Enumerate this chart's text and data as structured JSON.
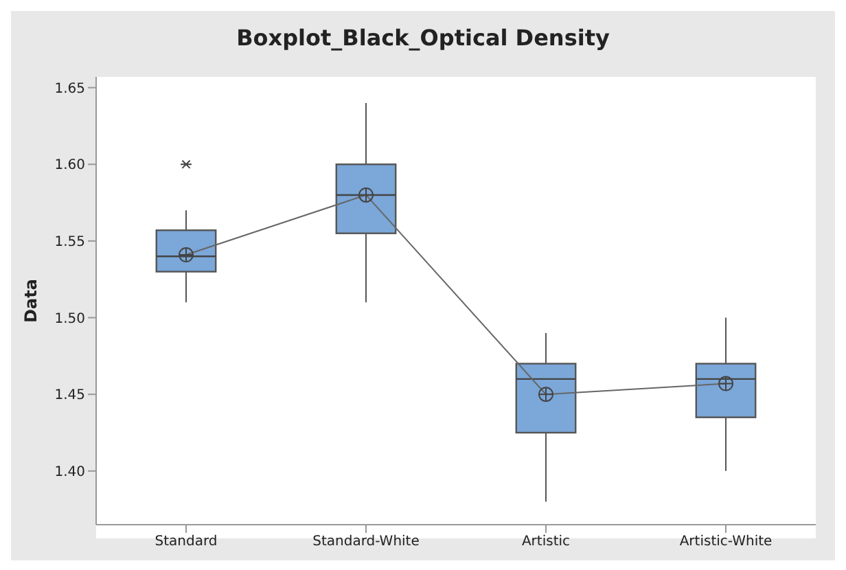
{
  "chart_data": {
    "type": "box",
    "title": "Boxplot_Black_Optical Density",
    "ylabel": "Data",
    "categories": [
      "Standard",
      "Standard-White",
      "Artistic",
      "Artistic-White"
    ],
    "color": "#7ba7d9",
    "ylim": [
      1.365,
      1.657
    ],
    "yticks": [
      {
        "value": 1.4,
        "label": "1.40"
      },
      {
        "value": 1.45,
        "label": "1.45"
      },
      {
        "value": 1.5,
        "label": "1.50"
      },
      {
        "value": 1.55,
        "label": "1.55"
      },
      {
        "value": 1.6,
        "label": "1.60"
      },
      {
        "value": 1.65,
        "label": "1.65"
      }
    ],
    "grid": false,
    "legend": false,
    "boxes": [
      {
        "low": 1.51,
        "q1": 1.53,
        "median": 1.54,
        "q3": 1.557,
        "high": 1.57,
        "outliers": [
          1.6
        ]
      },
      {
        "low": 1.51,
        "q1": 1.555,
        "median": 1.58,
        "q3": 1.6,
        "high": 1.64
      },
      {
        "low": 1.38,
        "q1": 1.425,
        "median": 1.46,
        "q3": 1.47,
        "high": 1.49
      },
      {
        "low": 1.4,
        "q1": 1.435,
        "median": 1.46,
        "q3": 1.47,
        "high": 1.5
      }
    ],
    "series": [
      {
        "type": "line",
        "color": "#666666",
        "marker": "circle",
        "values": [
          1.541,
          1.58,
          1.45,
          1.457
        ]
      }
    ]
  }
}
